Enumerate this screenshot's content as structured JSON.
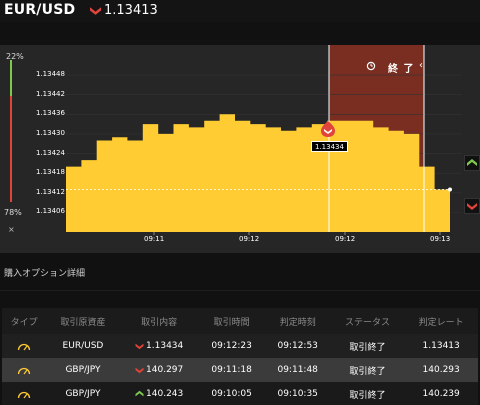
{
  "header": {
    "pair": "EUR/USD",
    "price": "1.13413",
    "direction": "down"
  },
  "chart": {
    "pct_top": "22%",
    "pct_bottom": "78%",
    "close_mark": "×",
    "end_label": "終 了",
    "end_mark": "‹",
    "price_tag": "1.13434",
    "colors": {
      "fill": "#ffcc33",
      "expiry_zone": "#7a2e22",
      "up": "#7ec850",
      "down": "#e0443a"
    }
  },
  "chart_data": {
    "type": "area",
    "title": "",
    "xlabel": "",
    "ylabel": "",
    "ylim": [
      1.134,
      1.13452
    ],
    "yticks": [
      "1.13448",
      "1.13442",
      "1.13436",
      "1.13430",
      "1.13424",
      "1.13418",
      "1.13412",
      "1.13406"
    ],
    "xticks": [
      "09:11",
      "09:12",
      "09:12",
      "09:13"
    ],
    "series": [
      {
        "values": [
          1.1342,
          1.13422,
          1.13428,
          1.13429,
          1.13428,
          1.13433,
          1.1343,
          1.13433,
          1.13432,
          1.13434,
          1.13436,
          1.13434,
          1.13433,
          1.13432,
          1.13431,
          1.13432,
          1.13433,
          1.13434,
          1.13434,
          1.13434,
          1.13432,
          1.13431,
          1.1343,
          1.1342,
          1.13413,
          1.13413
        ]
      }
    ],
    "entry_rate": 1.13434,
    "current_rate": 1.13413,
    "grid": true
  },
  "section": {
    "title": "購入オプション詳細"
  },
  "table": {
    "headers": [
      "タイプ",
      "取引原資産",
      "取引内容",
      "取引時間",
      "判定時刻",
      "ステータス",
      "判定レート"
    ],
    "rows": [
      {
        "asset": "EUR/USD",
        "direction": "down",
        "content": "1.13434",
        "trade_time": "09:12:23",
        "judge_time": "09:12:53",
        "status": "取引終了",
        "rate": "1.13413"
      },
      {
        "asset": "GBP/JPY",
        "direction": "down",
        "content": "140.297",
        "trade_time": "09:11:18",
        "judge_time": "09:11:48",
        "status": "取引終了",
        "rate": "140.293"
      },
      {
        "asset": "GBP/JPY",
        "direction": "up",
        "content": "140.243",
        "trade_time": "09:10:05",
        "judge_time": "09:10:35",
        "status": "取引終了",
        "rate": "140.239"
      }
    ]
  }
}
